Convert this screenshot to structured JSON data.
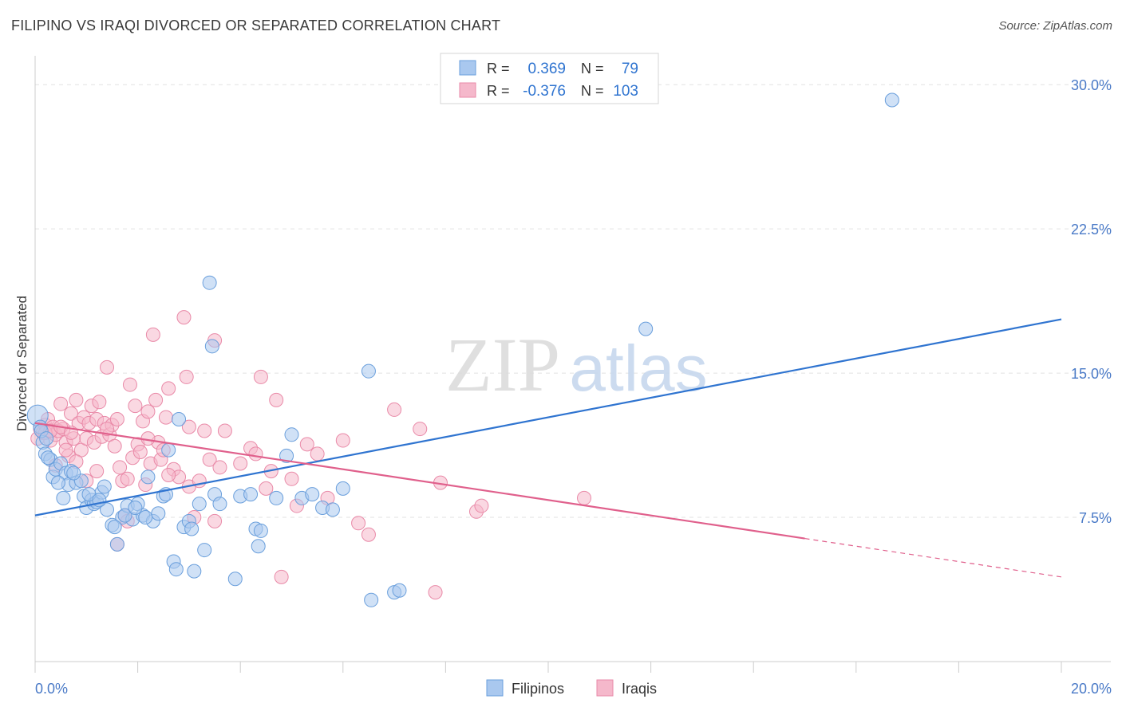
{
  "title": "FILIPINO VS IRAQI DIVORCED OR SEPARATED CORRELATION CHART",
  "source": "Source: ZipAtlas.com",
  "watermark": {
    "zip": "ZIP",
    "atlas": "atlas"
  },
  "chart_data": {
    "type": "scatter",
    "title": "FILIPINO VS IRAQI DIVORCED OR SEPARATED CORRELATION CHART",
    "xlabel": "",
    "ylabel": "Divorced or Separated",
    "xlim": [
      0,
      20
    ],
    "ylim": [
      0,
      31.5
    ],
    "x_tick_labels": [
      "0.0%",
      "20.0%"
    ],
    "y_ticks": [
      7.5,
      15.0,
      22.5,
      30.0
    ],
    "y_tick_labels": [
      "7.5%",
      "15.0%",
      "22.5%",
      "30.0%"
    ],
    "grid": true,
    "legend": {
      "placement": "top-center",
      "entries": [
        {
          "r_label": "R =",
          "r_value": "0.369",
          "n_label": "N =",
          "n_value": "79"
        },
        {
          "r_label": "R =",
          "r_value": "-0.376",
          "n_label": "N =",
          "n_value": "103"
        }
      ]
    },
    "bottom_legend": [
      "Filipinos",
      "Iraqis"
    ],
    "colors": {
      "filipinos_fill": "#a9c8ef",
      "filipinos_stroke": "#6a9fdc",
      "filipinos_line": "#2f74d0",
      "iraqis_fill": "#f5b8cb",
      "iraqis_stroke": "#e98aa8",
      "iraqis_line": "#e0608c",
      "tick_label": "#4a7ac7"
    },
    "series": [
      {
        "name": "Filipinos",
        "trend": {
          "x": [
            0,
            20
          ],
          "y": [
            7.6,
            17.8
          ]
        },
        "points": [
          [
            0.05,
            12.8
          ],
          [
            0.1,
            12.2
          ],
          [
            0.15,
            11.4
          ],
          [
            0.2,
            10.8
          ],
          [
            0.3,
            10.5
          ],
          [
            0.35,
            9.6
          ],
          [
            0.4,
            10.0
          ],
          [
            0.5,
            10.3
          ],
          [
            0.6,
            9.8
          ],
          [
            0.65,
            9.2
          ],
          [
            0.7,
            9.9
          ],
          [
            0.8,
            9.3
          ],
          [
            0.9,
            9.4
          ],
          [
            0.95,
            8.6
          ],
          [
            1.0,
            8.0
          ],
          [
            1.1,
            8.4
          ],
          [
            1.15,
            8.2
          ],
          [
            1.2,
            8.3
          ],
          [
            1.3,
            8.8
          ],
          [
            1.4,
            7.9
          ],
          [
            1.5,
            7.1
          ],
          [
            1.6,
            6.1
          ],
          [
            1.7,
            7.5
          ],
          [
            1.8,
            8.1
          ],
          [
            1.9,
            7.4
          ],
          [
            2.0,
            8.2
          ],
          [
            2.1,
            7.6
          ],
          [
            2.2,
            9.6
          ],
          [
            2.3,
            7.3
          ],
          [
            2.4,
            7.7
          ],
          [
            2.5,
            8.6
          ],
          [
            2.6,
            11.0
          ],
          [
            2.7,
            5.2
          ],
          [
            2.75,
            4.8
          ],
          [
            2.8,
            12.6
          ],
          [
            2.9,
            7.0
          ],
          [
            3.0,
            7.3
          ],
          [
            3.1,
            4.7
          ],
          [
            3.2,
            8.2
          ],
          [
            3.3,
            5.8
          ],
          [
            3.4,
            19.7
          ],
          [
            3.45,
            16.4
          ],
          [
            3.5,
            8.7
          ],
          [
            3.6,
            8.2
          ],
          [
            3.9,
            4.3
          ],
          [
            4.0,
            8.6
          ],
          [
            4.2,
            8.7
          ],
          [
            4.3,
            6.9
          ],
          [
            4.35,
            6.0
          ],
          [
            4.4,
            6.8
          ],
          [
            4.7,
            8.5
          ],
          [
            4.9,
            10.7
          ],
          [
            5.0,
            11.8
          ],
          [
            5.2,
            8.5
          ],
          [
            5.4,
            8.7
          ],
          [
            5.6,
            8.0
          ],
          [
            5.8,
            7.9
          ],
          [
            6.0,
            9.0
          ],
          [
            6.5,
            15.1
          ],
          [
            6.55,
            3.2
          ],
          [
            7.0,
            3.6
          ],
          [
            7.1,
            3.7
          ],
          [
            11.9,
            17.3
          ],
          [
            16.7,
            29.2
          ],
          [
            0.25,
            10.6
          ],
          [
            0.45,
            9.3
          ],
          [
            0.55,
            8.5
          ],
          [
            0.75,
            9.8
          ],
          [
            1.05,
            8.7
          ],
          [
            1.25,
            8.4
          ],
          [
            1.35,
            9.1
          ],
          [
            1.55,
            7.0
          ],
          [
            1.75,
            7.6
          ],
          [
            1.95,
            8.0
          ],
          [
            2.15,
            7.5
          ],
          [
            2.55,
            8.7
          ],
          [
            3.05,
            6.9
          ],
          [
            0.12,
            12.0
          ],
          [
            0.22,
            11.6
          ]
        ]
      },
      {
        "name": "Iraqis",
        "trend": {
          "x": [
            0,
            15
          ],
          "y": [
            12.4,
            6.4
          ]
        },
        "trend_dashed": {
          "x": [
            15,
            20
          ],
          "y": [
            6.4,
            4.4
          ]
        },
        "points": [
          [
            0.05,
            11.6
          ],
          [
            0.1,
            12.1
          ],
          [
            0.15,
            11.9
          ],
          [
            0.2,
            12.3
          ],
          [
            0.25,
            12.6
          ],
          [
            0.3,
            11.5
          ],
          [
            0.35,
            12.2
          ],
          [
            0.4,
            11.8
          ],
          [
            0.45,
            12.0
          ],
          [
            0.5,
            13.4
          ],
          [
            0.55,
            12.1
          ],
          [
            0.6,
            11.4
          ],
          [
            0.65,
            10.7
          ],
          [
            0.7,
            12.9
          ],
          [
            0.75,
            11.6
          ],
          [
            0.8,
            13.6
          ],
          [
            0.85,
            12.4
          ],
          [
            0.9,
            11.0
          ],
          [
            0.95,
            12.7
          ],
          [
            1.0,
            11.6
          ],
          [
            1.05,
            12.4
          ],
          [
            1.1,
            13.3
          ],
          [
            1.15,
            11.4
          ],
          [
            1.2,
            12.6
          ],
          [
            1.25,
            13.5
          ],
          [
            1.3,
            11.7
          ],
          [
            1.35,
            12.4
          ],
          [
            1.4,
            15.3
          ],
          [
            1.45,
            11.8
          ],
          [
            1.5,
            12.3
          ],
          [
            1.55,
            11.2
          ],
          [
            1.6,
            12.6
          ],
          [
            1.65,
            10.1
          ],
          [
            1.7,
            9.4
          ],
          [
            1.75,
            7.6
          ],
          [
            1.8,
            7.3
          ],
          [
            1.85,
            14.4
          ],
          [
            1.9,
            10.6
          ],
          [
            1.95,
            13.3
          ],
          [
            2.0,
            11.3
          ],
          [
            2.05,
            10.9
          ],
          [
            2.1,
            12.5
          ],
          [
            2.15,
            9.2
          ],
          [
            2.2,
            13.0
          ],
          [
            2.25,
            10.3
          ],
          [
            2.3,
            17.0
          ],
          [
            2.35,
            13.6
          ],
          [
            2.4,
            11.4
          ],
          [
            2.45,
            10.5
          ],
          [
            2.5,
            11.0
          ],
          [
            2.55,
            12.7
          ],
          [
            2.6,
            14.2
          ],
          [
            2.7,
            10.0
          ],
          [
            2.8,
            9.6
          ],
          [
            2.9,
            17.9
          ],
          [
            2.95,
            14.8
          ],
          [
            3.0,
            9.1
          ],
          [
            3.1,
            7.5
          ],
          [
            3.2,
            9.4
          ],
          [
            3.3,
            12.0
          ],
          [
            3.4,
            10.5
          ],
          [
            3.5,
            16.7
          ],
          [
            3.6,
            10.1
          ],
          [
            3.7,
            12.0
          ],
          [
            4.0,
            10.3
          ],
          [
            4.2,
            11.1
          ],
          [
            4.3,
            10.8
          ],
          [
            4.4,
            14.8
          ],
          [
            4.5,
            9.0
          ],
          [
            4.6,
            9.9
          ],
          [
            4.7,
            13.6
          ],
          [
            4.8,
            4.4
          ],
          [
            5.0,
            9.5
          ],
          [
            5.1,
            8.1
          ],
          [
            5.3,
            11.3
          ],
          [
            5.5,
            10.8
          ],
          [
            5.7,
            8.5
          ],
          [
            6.0,
            11.5
          ],
          [
            6.3,
            7.2
          ],
          [
            6.5,
            6.6
          ],
          [
            7.0,
            13.1
          ],
          [
            7.5,
            12.1
          ],
          [
            7.8,
            3.6
          ],
          [
            7.9,
            9.3
          ],
          [
            8.6,
            7.8
          ],
          [
            8.7,
            8.1
          ],
          [
            10.7,
            8.5
          ],
          [
            1.0,
            9.4
          ],
          [
            0.2,
            11.9
          ],
          [
            0.4,
            10.2
          ],
          [
            0.6,
            11.0
          ],
          [
            0.8,
            10.4
          ],
          [
            1.2,
            9.9
          ],
          [
            1.4,
            12.1
          ],
          [
            1.6,
            6.1
          ],
          [
            1.8,
            9.5
          ],
          [
            2.2,
            11.6
          ],
          [
            2.6,
            9.7
          ],
          [
            3.0,
            12.2
          ],
          [
            3.5,
            7.3
          ],
          [
            0.3,
            12.0
          ],
          [
            0.5,
            12.2
          ],
          [
            0.7,
            11.9
          ]
        ]
      }
    ]
  }
}
